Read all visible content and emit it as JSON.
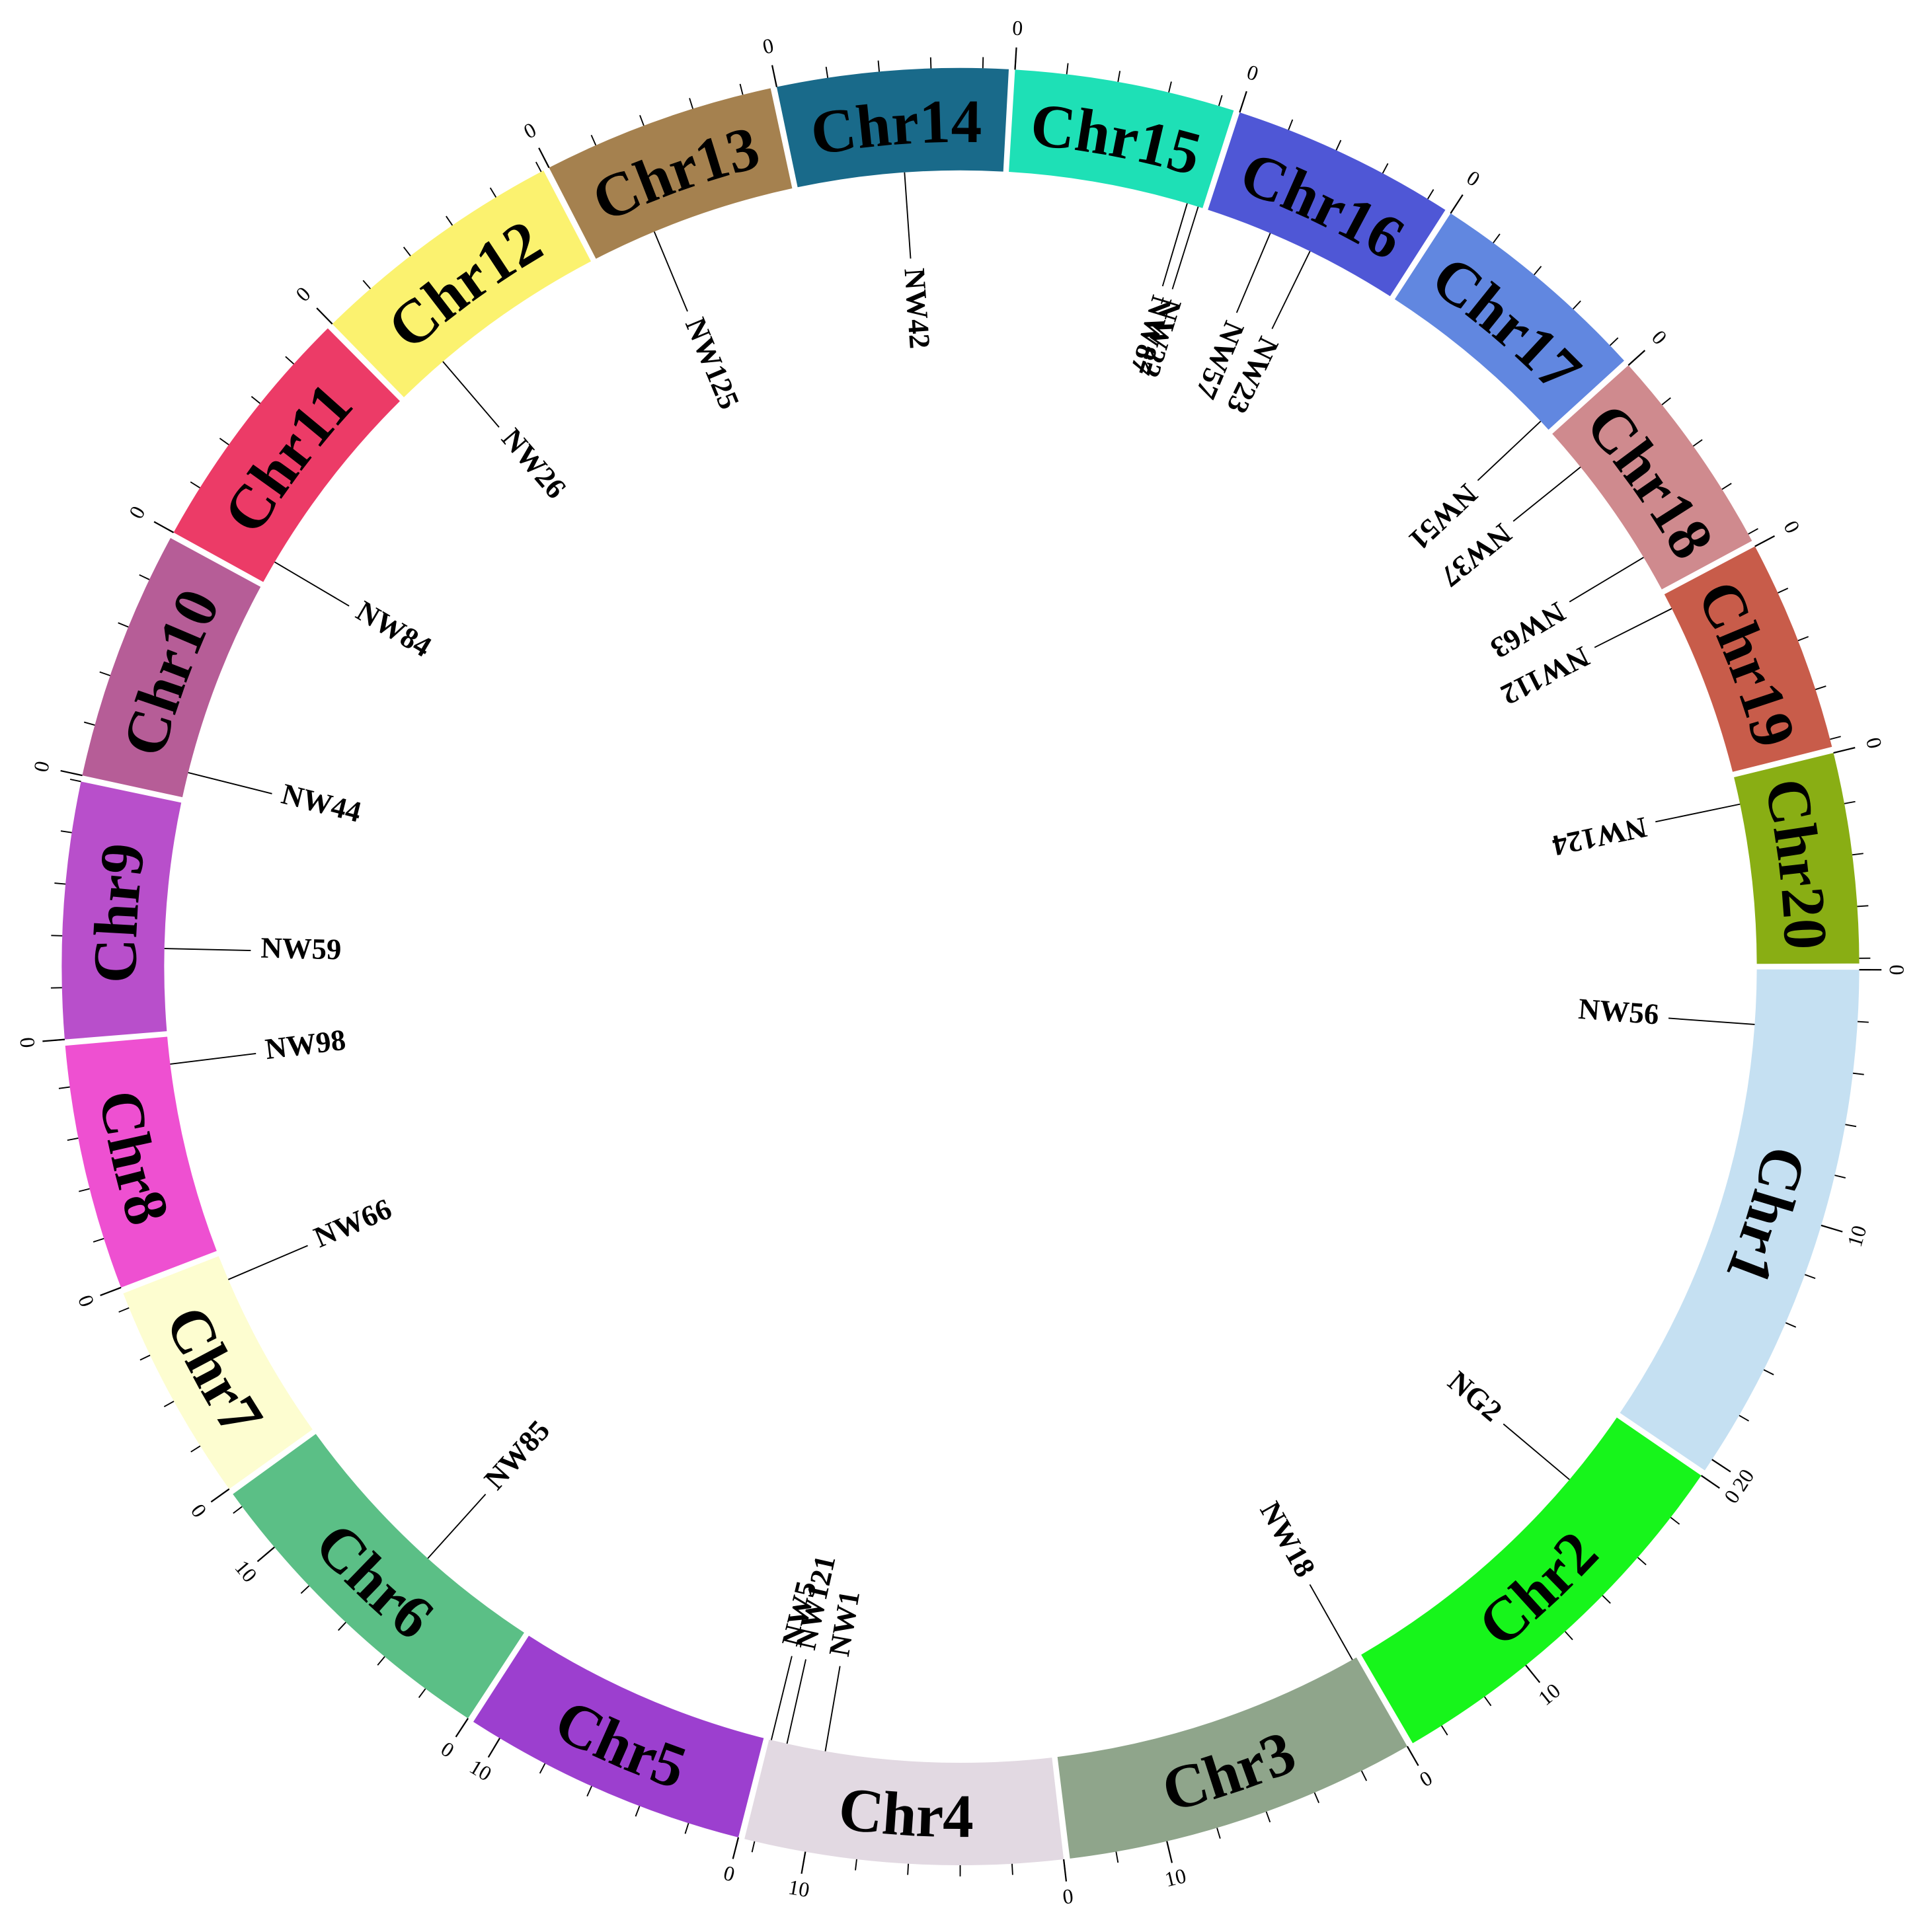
{
  "chromosomes": [
    {
      "label": "Chr1",
      "color": "#c5e0f2",
      "length": 20.5,
      "ticks": [
        0,
        10,
        20
      ]
    },
    {
      "label": "Chr2",
      "color": "#17f51b",
      "length": 15.3,
      "ticks": [
        0,
        10
      ]
    },
    {
      "label": "Chr3",
      "color": "#8fa58b",
      "length": 13.8,
      "ticks": [
        0,
        10
      ]
    },
    {
      "label": "Chr4",
      "color": "#e2d9e2",
      "length": 12.4,
      "ticks": [
        0,
        10
      ]
    },
    {
      "label": "Chr5",
      "color": "#9c3fcf",
      "length": 11.2,
      "ticks": [
        0,
        10
      ]
    },
    {
      "label": "Chr6",
      "color": "#5bbf86",
      "length": 12.6,
      "ticks": [
        0,
        10
      ]
    },
    {
      "label": "Chr7",
      "color": "#fdfdd0",
      "length": 8.6,
      "ticks": [
        0
      ]
    },
    {
      "label": "Chr8",
      "color": "#ee50d1",
      "length": 9.6,
      "ticks": [
        0
      ]
    },
    {
      "label": "Chr9",
      "color": "#b84fcb",
      "length": 10.0,
      "ticks": [
        0
      ]
    },
    {
      "label": "Chr10",
      "color": "#b65d97",
      "length": 9.8,
      "ticks": [
        0
      ]
    },
    {
      "label": "Chr11",
      "color": "#ec3b67",
      "length": 9.9,
      "ticks": [
        0
      ]
    },
    {
      "label": "Chr12",
      "color": "#fbf26f",
      "length": 10.1,
      "ticks": [
        0
      ]
    },
    {
      "label": "Chr13",
      "color": "#a5814f",
      "length": 9.1,
      "ticks": [
        0
      ]
    },
    {
      "label": "Chr14",
      "color": "#196a8a",
      "length": 9.0,
      "ticks": [
        0
      ]
    },
    {
      "label": "Chr15",
      "color": "#1ee0b6",
      "length": 8.6,
      "ticks": [
        0
      ]
    },
    {
      "label": "Chr16",
      "color": "#4f57d6",
      "length": 8.8,
      "ticks": [
        0
      ]
    },
    {
      "label": "Chr17",
      "color": "#6187e0",
      "length": 8.8,
      "ticks": [
        0
      ]
    },
    {
      "label": "Chr18",
      "color": "#cf8a8e",
      "length": 8.3,
      "ticks": [
        0
      ]
    },
    {
      "label": "Chr19",
      "color": "#c85c4a",
      "length": 8.3,
      "ticks": [
        0
      ]
    },
    {
      "label": "Chr20",
      "color": "#89ae14",
      "length": 8.2,
      "ticks": [
        0
      ]
    }
  ],
  "genes": [
    {
      "label": "NW56",
      "chromosome": "Chr1",
      "position": 2.4
    },
    {
      "label": "NG2",
      "chromosome": "Chr2",
      "position": 3.4
    },
    {
      "label": "NW18",
      "chromosome": "Chr3",
      "position": 0.2
    },
    {
      "label": "NW1",
      "chromosome": "Chr4",
      "position": 9.9
    },
    {
      "label": "NW121",
      "chromosome": "Chr4",
      "position": 11.6
    },
    {
      "label": "NW5",
      "chromosome": "Chr4",
      "position": 12.3
    },
    {
      "label": "NW85",
      "chromosome": "Chr6",
      "position": 5.3
    },
    {
      "label": "NW66",
      "chromosome": "Chr7",
      "position": 7.5
    },
    {
      "label": "NW98",
      "chromosome": "Chr8",
      "position": 8.4
    },
    {
      "label": "NW59",
      "chromosome": "Chr9",
      "position": 3.6
    },
    {
      "label": "NW44",
      "chromosome": "Chr10",
      "position": 1.1
    },
    {
      "label": "NW84",
      "chromosome": "Chr11",
      "position": 1.0
    },
    {
      "label": "NW26",
      "chromosome": "Chr12",
      "position": 2.3
    },
    {
      "label": "NW125",
      "chromosome": "Chr13",
      "position": 2.8
    },
    {
      "label": "NW42",
      "chromosome": "Chr14",
      "position": 4.7
    },
    {
      "label": "NW87",
      "chromosome": "Chr15",
      "position": 7.9
    },
    {
      "label": "NW22",
      "chromosome": "Chr15",
      "position": 8.4
    },
    {
      "label": "NW57",
      "chromosome": "Chr16",
      "position": 2.9
    },
    {
      "label": "NW23",
      "chromosome": "Chr16",
      "position": 4.8
    },
    {
      "label": "NW51",
      "chromosome": "Chr17",
      "position": 8.3
    },
    {
      "label": "NW37",
      "chromosome": "Chr18",
      "position": 1.9
    },
    {
      "label": "NW63",
      "chromosome": "Chr18",
      "position": 6.7
    },
    {
      "label": "NW112",
      "chromosome": "Chr19",
      "position": 0.7
    },
    {
      "label": "NW124",
      "chromosome": "Chr20",
      "position": 1.2
    }
  ]
}
